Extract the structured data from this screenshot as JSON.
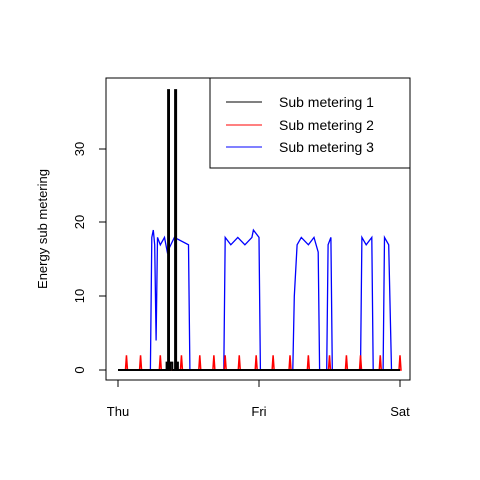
{
  "chart_data": {
    "type": "line",
    "title": "",
    "xlabel": "",
    "ylabel": "Energy sub metering",
    "xlim": [
      0,
      2
    ],
    "ylim": [
      -1.5,
      40
    ],
    "x_ticks": [
      {
        "value": 0,
        "label": "Thu"
      },
      {
        "value": 1,
        "label": "Fri"
      },
      {
        "value": 2,
        "label": "Sat"
      }
    ],
    "y_ticks": [
      0,
      10,
      20,
      30
    ],
    "legend_position": "top-right",
    "grid": false,
    "series": [
      {
        "name": "Sub metering 1",
        "color": "#000000",
        "segments": [
          [
            [
              0.0,
              0
            ],
            [
              0.345,
              0
            ],
            [
              0.345,
              1
            ],
            [
              0.35,
              1
            ],
            [
              0.35,
              0
            ],
            [
              0.355,
              0
            ],
            [
              0.355,
              38
            ],
            [
              0.362,
              38
            ],
            [
              0.362,
              0
            ],
            [
              0.37,
              0
            ],
            [
              0.37,
              1
            ],
            [
              0.385,
              1
            ],
            [
              0.385,
              0
            ],
            [
              0.405,
              0
            ],
            [
              0.405,
              38
            ],
            [
              0.412,
              38
            ],
            [
              0.412,
              0
            ],
            [
              0.42,
              0
            ],
            [
              0.42,
              1
            ],
            [
              0.425,
              1
            ],
            [
              0.425,
              0
            ],
            [
              2.0,
              0
            ]
          ]
        ]
      },
      {
        "name": "Sub metering 2",
        "color": "#ff0000",
        "spikes": [
          0.06,
          0.16,
          0.3,
          0.36,
          0.45,
          0.58,
          0.68,
          0.76,
          0.86,
          0.98,
          1.1,
          1.22,
          1.35,
          1.5,
          1.62,
          1.72,
          1.86,
          2.0
        ],
        "spike_value": 2
      },
      {
        "name": "Sub metering 3",
        "color": "#0000ff",
        "segments": [
          [
            [
              0.0,
              0
            ],
            [
              0.23,
              0
            ],
            [
              0.24,
              18
            ],
            [
              0.25,
              19
            ],
            [
              0.26,
              17
            ],
            [
              0.27,
              4
            ],
            [
              0.28,
              18
            ],
            [
              0.3,
              17
            ],
            [
              0.33,
              18
            ],
            [
              0.35,
              16
            ],
            [
              0.4,
              18
            ],
            [
              0.5,
              17
            ],
            [
              0.51,
              0
            ],
            [
              0.75,
              0
            ],
            [
              0.76,
              18
            ],
            [
              0.8,
              17
            ],
            [
              0.85,
              18
            ],
            [
              0.9,
              17
            ],
            [
              0.95,
              18
            ],
            [
              0.96,
              19
            ],
            [
              1.0,
              18
            ],
            [
              1.01,
              0
            ],
            [
              1.24,
              0
            ],
            [
              1.25,
              10
            ],
            [
              1.27,
              17
            ],
            [
              1.3,
              18
            ],
            [
              1.35,
              17
            ],
            [
              1.39,
              18
            ],
            [
              1.42,
              16
            ],
            [
              1.43,
              0
            ],
            [
              1.48,
              0
            ],
            [
              1.49,
              17
            ],
            [
              1.51,
              18
            ],
            [
              1.52,
              0
            ],
            [
              1.72,
              0
            ],
            [
              1.73,
              18
            ],
            [
              1.76,
              17
            ],
            [
              1.8,
              18
            ],
            [
              1.81,
              0
            ],
            [
              1.88,
              0
            ],
            [
              1.89,
              18
            ],
            [
              1.92,
              17
            ],
            [
              1.94,
              0
            ],
            [
              2.0,
              0
            ]
          ]
        ]
      }
    ]
  }
}
